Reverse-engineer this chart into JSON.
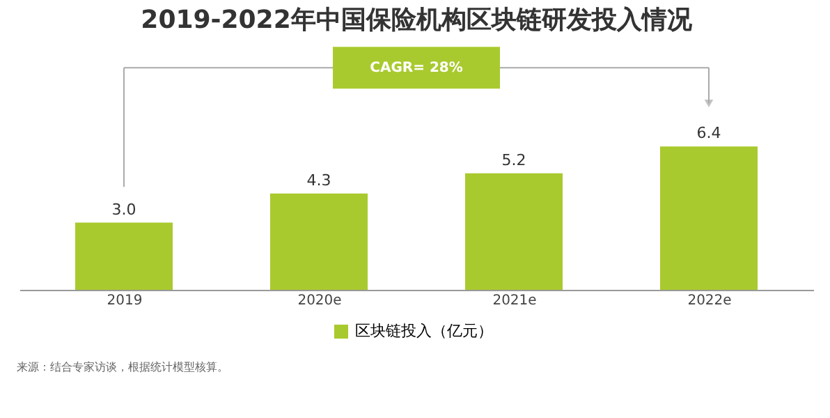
{
  "chart_data": {
    "type": "bar",
    "title": "2019-2022年中国保险机构区块链研发投入情况",
    "categories": [
      "2019",
      "2020e",
      "2021e",
      "2022e"
    ],
    "series": [
      {
        "name": "区块链投入（亿元）",
        "color": "#a9ca2e",
        "values": [
          3.0,
          4.3,
          5.2,
          6.4
        ],
        "value_labels": [
          "3.0",
          "4.3",
          "5.2",
          "6.4"
        ]
      }
    ],
    "annotations": [
      "CAGR= 28%",
      "来源：结合专家访谈，根据统计模型核算。"
    ],
    "legend": "bottom"
  }
}
